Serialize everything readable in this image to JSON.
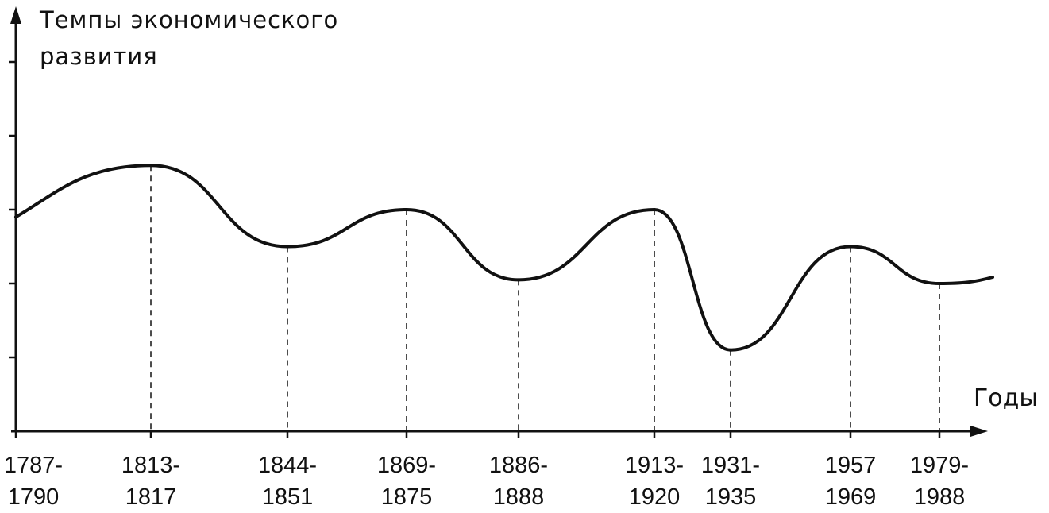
{
  "chart_data": {
    "type": "line",
    "ylabel_lines": [
      "Темпы экономического",
      "развития"
    ],
    "xlabel": "Годы",
    "periods": [
      {
        "start": "1787-",
        "end": "1790"
      },
      {
        "start": "1813-",
        "end": "1817"
      },
      {
        "start": "1844-",
        "end": "1851"
      },
      {
        "start": "1869-",
        "end": "1875"
      },
      {
        "start": "1886-",
        "end": "1888"
      },
      {
        "start": "1913-",
        "end": "1920"
      },
      {
        "start": "1931-",
        "end": "1935"
      },
      {
        "start": "1957",
        "end": "1969"
      },
      {
        "start": "1979-",
        "end": "1988"
      }
    ],
    "period_years": [
      1788.5,
      1815,
      1847.5,
      1872,
      1887,
      1916.5,
      1933,
      1963,
      1983.5
    ],
    "values": [
      2.9,
      3.6,
      2.5,
      3.0,
      2.05,
      3.0,
      1.1,
      2.5,
      2.0
    ],
    "ylim": [
      0,
      5.7
    ],
    "y_tick_count": 6,
    "grid": false,
    "marker_lines": "dashed vertical lines from curve extrema to the x-axis"
  },
  "colors": {
    "line": "#111111",
    "background": "#ffffff"
  }
}
